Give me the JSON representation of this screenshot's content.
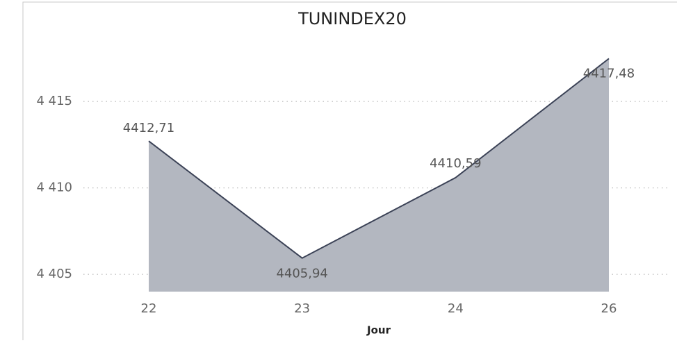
{
  "chart_data": {
    "type": "area",
    "title": "TUNINDEX20",
    "x_label": "Jour",
    "categories": [
      "22",
      "23",
      "24",
      "26"
    ],
    "values": [
      4412.71,
      4405.94,
      4410.59,
      4417.48
    ],
    "value_labels": [
      "4412,71",
      "4405,94",
      "4410,59",
      "4417,48"
    ],
    "color": "#b3b7c0",
    "line_color": "#3b4256",
    "ylim": [
      4404,
      4418.5
    ],
    "yticks": [
      {
        "value": 4405,
        "label": "4 405"
      },
      {
        "value": 4410,
        "label": "4 410"
      },
      {
        "value": 4415,
        "label": "4 415"
      }
    ],
    "grid": true
  }
}
